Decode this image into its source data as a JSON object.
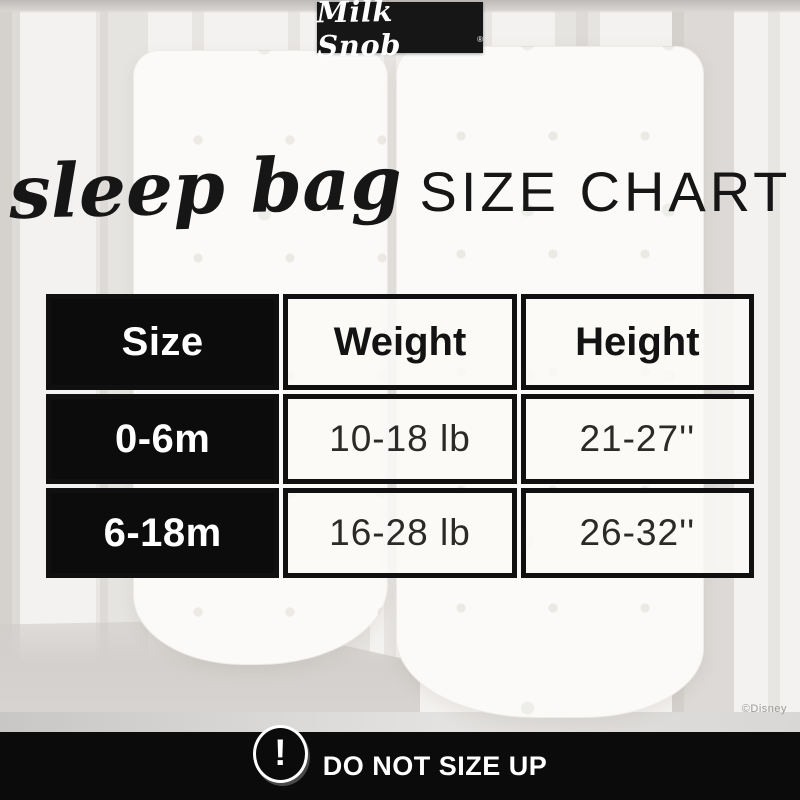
{
  "logo": {
    "text": "Milk Snob",
    "mark": "®"
  },
  "title": {
    "script": "sleep bag",
    "caps": "SIZE CHART"
  },
  "size_chart": {
    "columns": [
      "Size",
      "Weight",
      "Height"
    ],
    "rows": [
      {
        "size": "0-6m",
        "weight": "10-18 lb",
        "height": "21-27''"
      },
      {
        "size": "6-18m",
        "weight": "16-28 lb",
        "height": "26-32''"
      }
    ]
  },
  "warning": {
    "icon": "!",
    "text": "DO NOT SIZE UP"
  },
  "copyright": "©Disney",
  "colors": {
    "ink": "#101010",
    "logo_bg": "#161616",
    "bar_bg": "#0b0b0b",
    "cell_bg": "#f8f7f5",
    "photo_gray": "#d3d0cd"
  }
}
